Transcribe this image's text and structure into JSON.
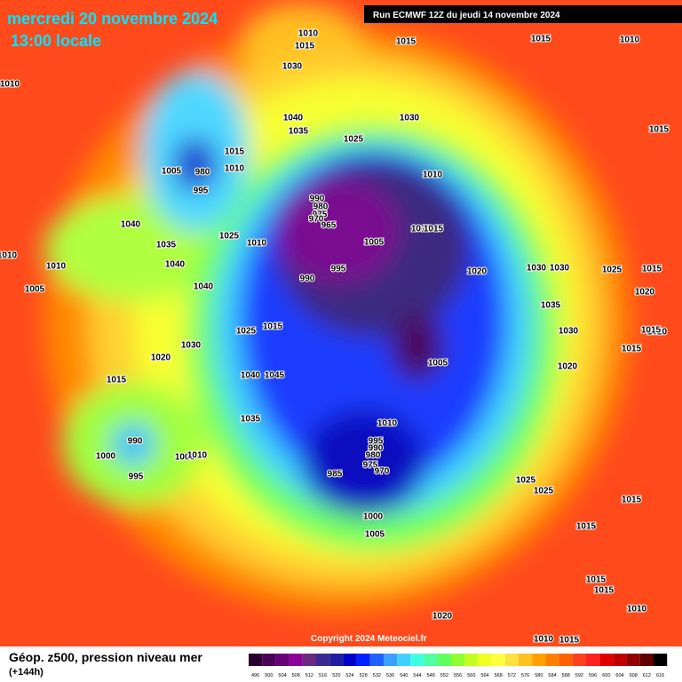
{
  "header": {
    "date": "mercredi 20 novembre 2024",
    "time": "13:00 locale",
    "run": "Run ECMWF 12Z du jeudi 14 novembre 2024"
  },
  "copyright": "Copyright 2024 Meteociel.fr",
  "footer": {
    "title": "Géop. z500, pression niveau mer",
    "lead": "(+144h)"
  },
  "legend_labels": [
    "496",
    "500",
    "504",
    "508",
    "512",
    "516",
    "520",
    "524",
    "528",
    "532",
    "536",
    "540",
    "544",
    "548",
    "552",
    "556",
    "560",
    "564",
    "568",
    "572",
    "576",
    "580",
    "584",
    "588",
    "592",
    "596",
    "600",
    "604",
    "608",
    "612",
    "616"
  ],
  "isobar_labels": [
    "1010",
    "1015",
    "1030",
    "1015",
    "1015",
    "1010",
    "1010",
    "1040",
    "1035",
    "1030",
    "1025",
    "1015",
    "1015",
    "1010",
    "1010",
    "995",
    "990",
    "980",
    "975",
    "970",
    "965",
    "1025",
    "1010",
    "1040",
    "1035",
    "1005",
    "1010",
    "1015",
    "995",
    "990",
    "1040",
    "1040",
    "1010",
    "1010",
    "1005",
    "1020",
    "1030",
    "1030",
    "1025",
    "1015",
    "1020",
    "1035",
    "1030",
    "1015",
    "1020",
    "1015",
    "1025",
    "1030",
    "1020",
    "1015",
    "1020",
    "1005",
    "1040",
    "1045",
    "1015",
    "1035",
    "1010",
    "995",
    "990",
    "990",
    "980",
    "975",
    "970",
    "985",
    "1000",
    "1000",
    "1010",
    "995",
    "1025",
    "1025",
    "1000",
    "1005",
    "1015",
    "1015",
    "1015",
    "1015",
    "1010",
    "1020",
    "1010",
    "1015",
    "1005",
    "980"
  ]
}
